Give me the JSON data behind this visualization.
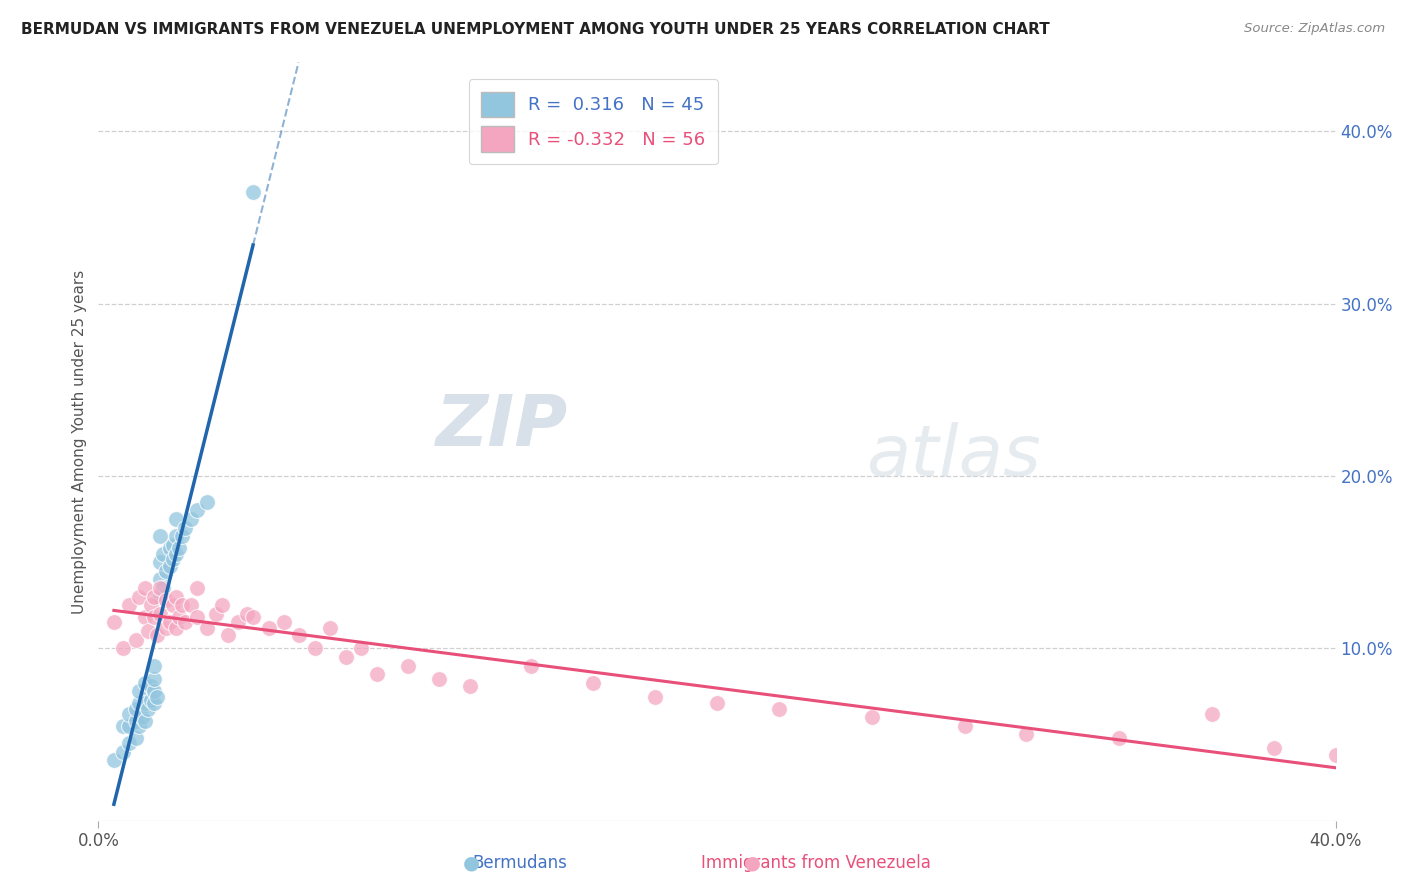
{
  "title": "BERMUDAN VS IMMIGRANTS FROM VENEZUELA UNEMPLOYMENT AMONG YOUTH UNDER 25 YEARS CORRELATION CHART",
  "source": "Source: ZipAtlas.com",
  "ylabel": "Unemployment Among Youth under 25 years",
  "xlim": [
    0.0,
    0.4
  ],
  "ylim": [
    0.0,
    0.44
  ],
  "y_ticks_right": [
    0.0,
    0.1,
    0.2,
    0.3,
    0.4
  ],
  "y_tick_labels_right": [
    "",
    "10.0%",
    "20.0%",
    "30.0%",
    "40.0%"
  ],
  "legend_r1": "R =  0.316",
  "legend_n1": "N = 45",
  "legend_r2": "R = -0.332",
  "legend_n2": "N = 56",
  "blue_color": "#92c5de",
  "pink_color": "#f4a6c0",
  "blue_line_color": "#2166ac",
  "pink_line_color": "#e8507a",
  "watermark_zip": "ZIP",
  "watermark_atlas": "atlas",
  "background_color": "#ffffff",
  "grid_color": "#d0d0d0",
  "blue_points_x": [
    0.005,
    0.008,
    0.008,
    0.01,
    0.01,
    0.01,
    0.012,
    0.012,
    0.012,
    0.013,
    0.013,
    0.013,
    0.014,
    0.015,
    0.015,
    0.015,
    0.016,
    0.017,
    0.017,
    0.018,
    0.018,
    0.018,
    0.018,
    0.019,
    0.02,
    0.02,
    0.02,
    0.02,
    0.021,
    0.021,
    0.022,
    0.023,
    0.023,
    0.024,
    0.024,
    0.025,
    0.025,
    0.025,
    0.026,
    0.027,
    0.028,
    0.03,
    0.032,
    0.035,
    0.05
  ],
  "blue_points_y": [
    0.035,
    0.04,
    0.055,
    0.045,
    0.055,
    0.062,
    0.048,
    0.058,
    0.065,
    0.055,
    0.068,
    0.075,
    0.06,
    0.058,
    0.068,
    0.08,
    0.065,
    0.07,
    0.078,
    0.068,
    0.075,
    0.082,
    0.09,
    0.072,
    0.13,
    0.14,
    0.15,
    0.165,
    0.135,
    0.155,
    0.145,
    0.148,
    0.158,
    0.152,
    0.16,
    0.155,
    0.165,
    0.175,
    0.158,
    0.165,
    0.17,
    0.175,
    0.18,
    0.185,
    0.365
  ],
  "pink_points_x": [
    0.005,
    0.008,
    0.01,
    0.012,
    0.013,
    0.015,
    0.015,
    0.016,
    0.017,
    0.018,
    0.018,
    0.019,
    0.02,
    0.02,
    0.022,
    0.022,
    0.023,
    0.024,
    0.025,
    0.025,
    0.026,
    0.027,
    0.028,
    0.03,
    0.032,
    0.032,
    0.035,
    0.038,
    0.04,
    0.042,
    0.045,
    0.048,
    0.05,
    0.055,
    0.06,
    0.065,
    0.07,
    0.075,
    0.08,
    0.085,
    0.09,
    0.1,
    0.11,
    0.12,
    0.14,
    0.16,
    0.18,
    0.2,
    0.22,
    0.25,
    0.28,
    0.3,
    0.33,
    0.36,
    0.38,
    0.4
  ],
  "pink_points_y": [
    0.115,
    0.1,
    0.125,
    0.105,
    0.13,
    0.118,
    0.135,
    0.11,
    0.125,
    0.118,
    0.13,
    0.108,
    0.12,
    0.135,
    0.112,
    0.128,
    0.115,
    0.125,
    0.112,
    0.13,
    0.118,
    0.125,
    0.115,
    0.125,
    0.118,
    0.135,
    0.112,
    0.12,
    0.125,
    0.108,
    0.115,
    0.12,
    0.118,
    0.112,
    0.115,
    0.108,
    0.1,
    0.112,
    0.095,
    0.1,
    0.085,
    0.09,
    0.082,
    0.078,
    0.09,
    0.08,
    0.072,
    0.068,
    0.065,
    0.06,
    0.055,
    0.05,
    0.048,
    0.062,
    0.042,
    0.038
  ]
}
